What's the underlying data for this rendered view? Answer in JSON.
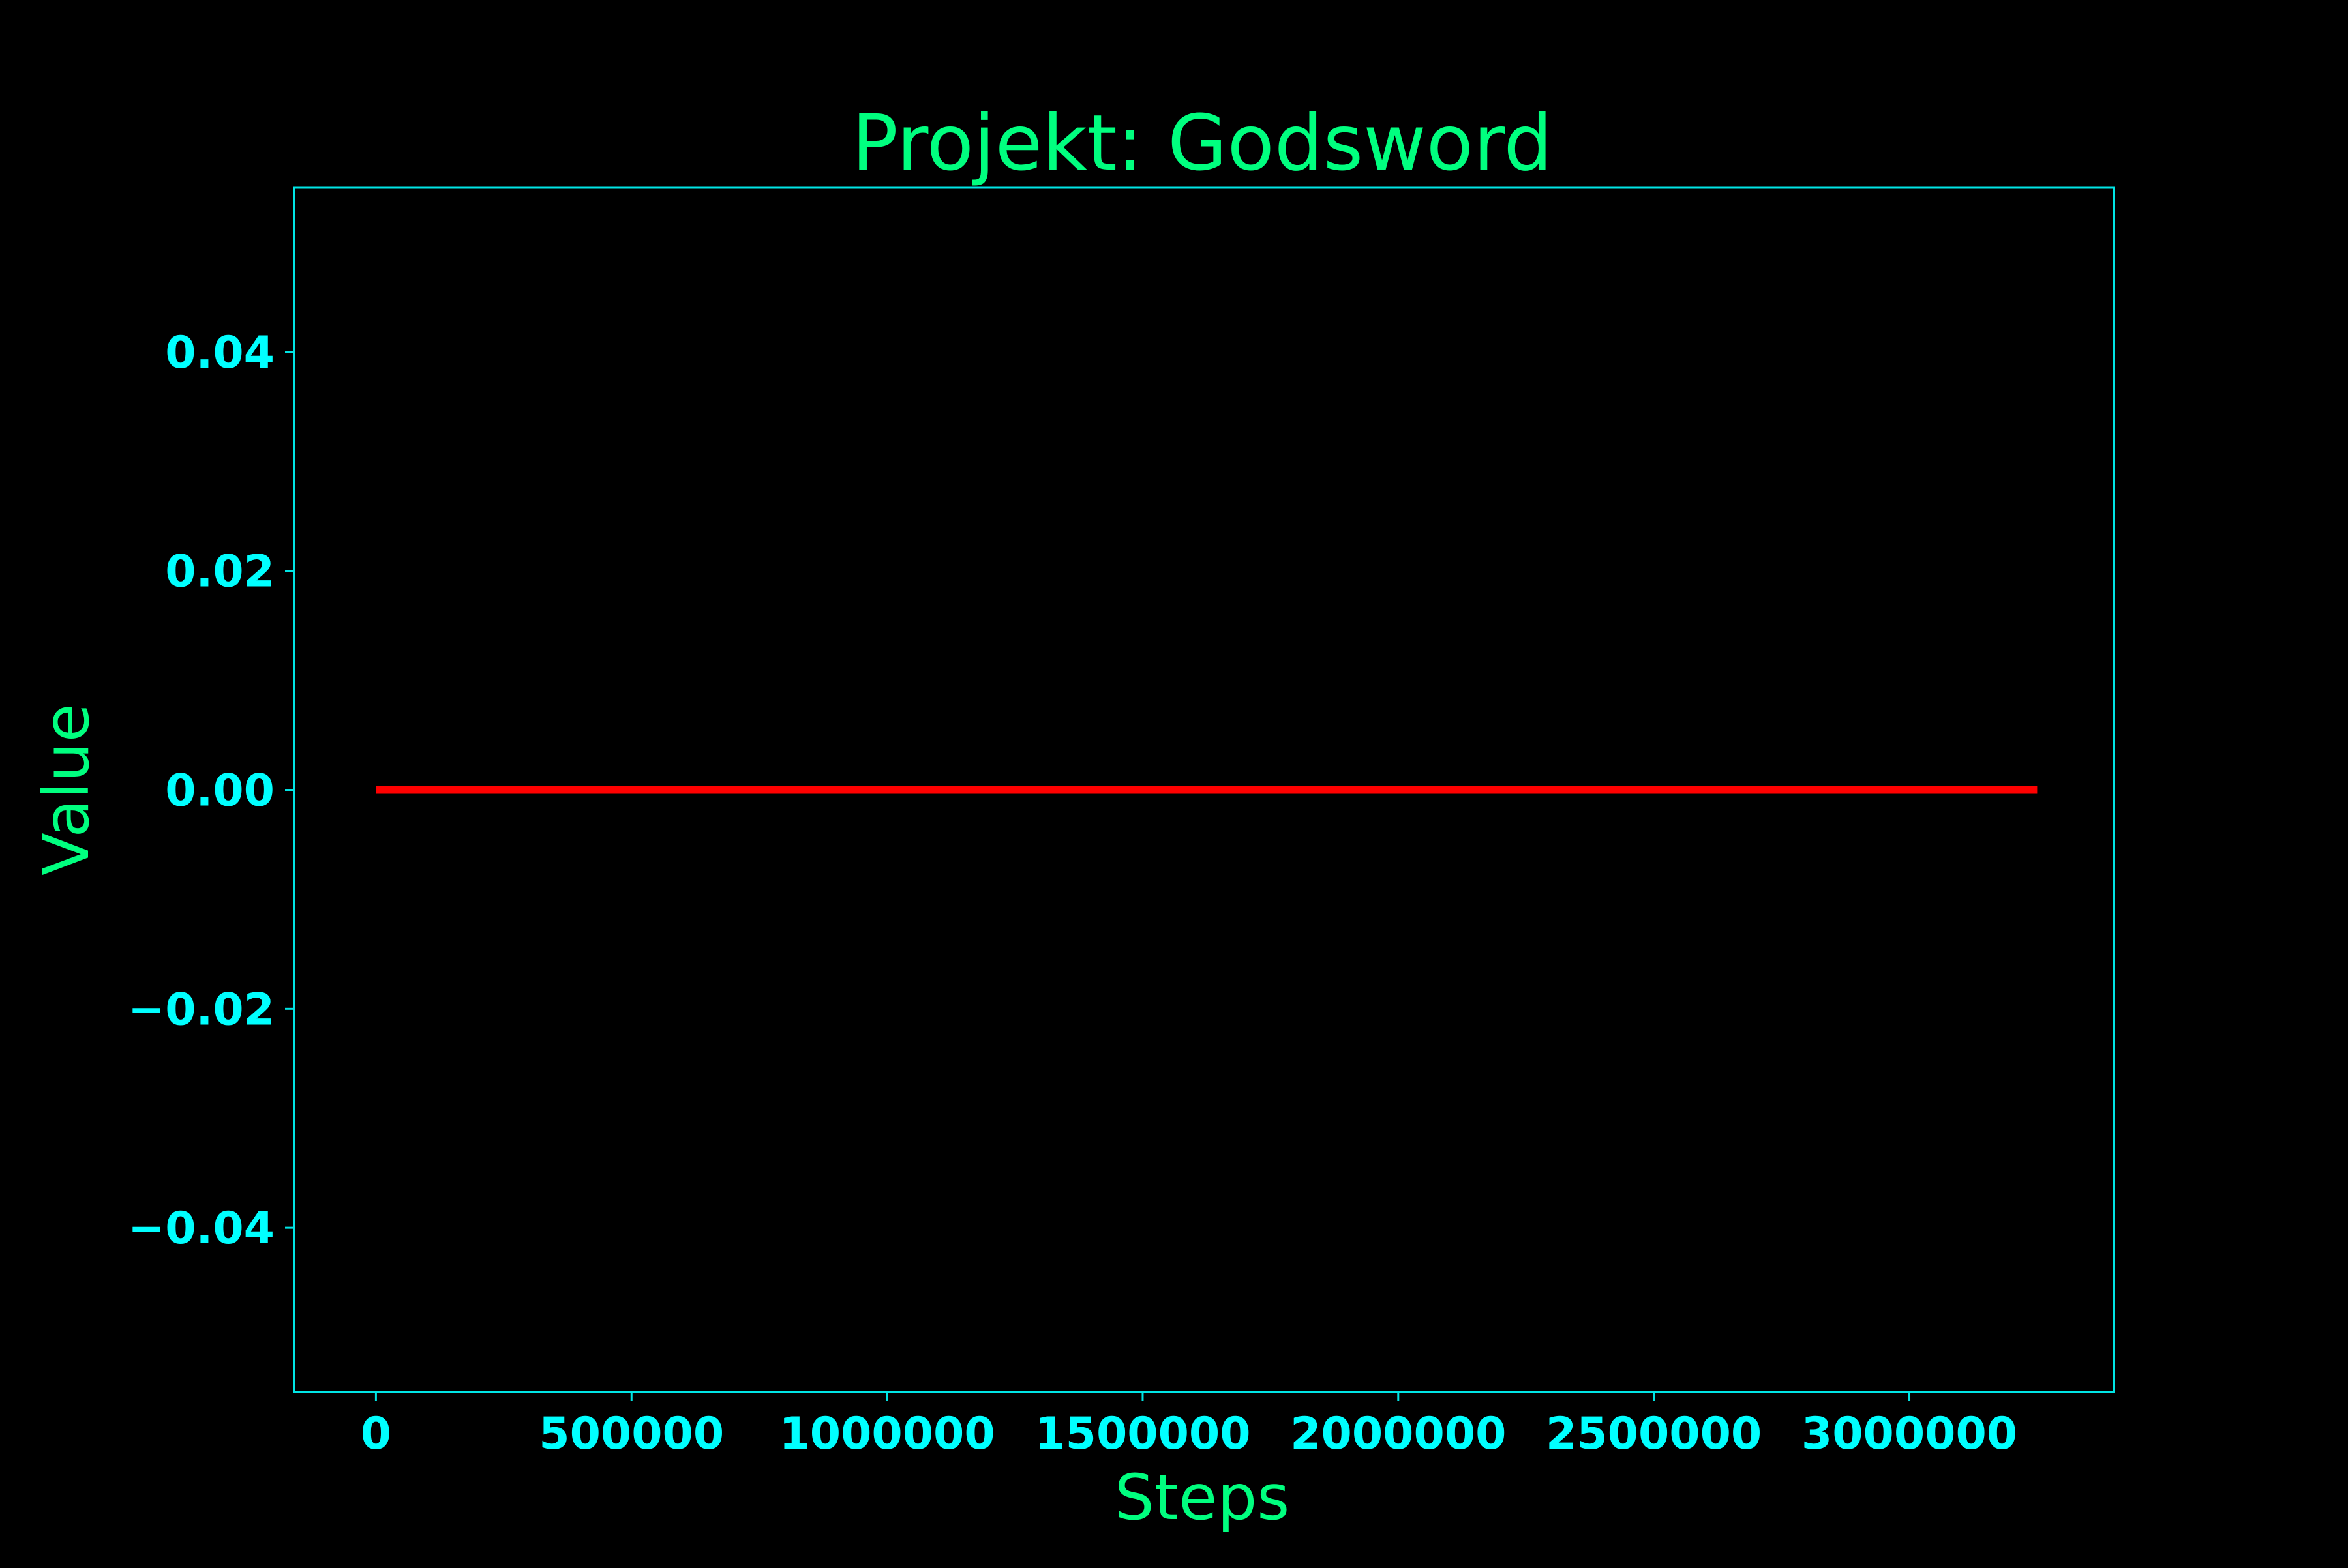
{
  "chart_data": {
    "type": "line",
    "title": "Projekt: Godsword",
    "xlabel": "Steps",
    "ylabel": "Value",
    "xlim": [
      -160000,
      3400000
    ],
    "ylim": [
      -0.055,
      0.055
    ],
    "xticks": [
      0,
      500000,
      1000000,
      1500000,
      2000000,
      2500000,
      3000000
    ],
    "xtick_labels": [
      "0",
      "500000",
      "1000000",
      "1500000",
      "2000000",
      "2500000",
      "3000000"
    ],
    "yticks": [
      -0.04,
      -0.02,
      0.0,
      0.02,
      0.04
    ],
    "ytick_labels": [
      "−0.04",
      "−0.02",
      "0.00",
      "0.02",
      "0.04"
    ],
    "grid": false,
    "legend": "none",
    "series": [
      {
        "x": [
          0,
          500000,
          1000000,
          1500000,
          2000000,
          2500000,
          3000000,
          3250000
        ],
        "values": [
          0,
          0,
          0,
          0,
          0,
          0,
          0,
          0
        ]
      }
    ],
    "colors": {
      "background": "#000000",
      "line": "#ff0000",
      "axes": "#00e5e5",
      "ticks_text": "#00ffff",
      "title_text": "#00ff7f"
    }
  }
}
